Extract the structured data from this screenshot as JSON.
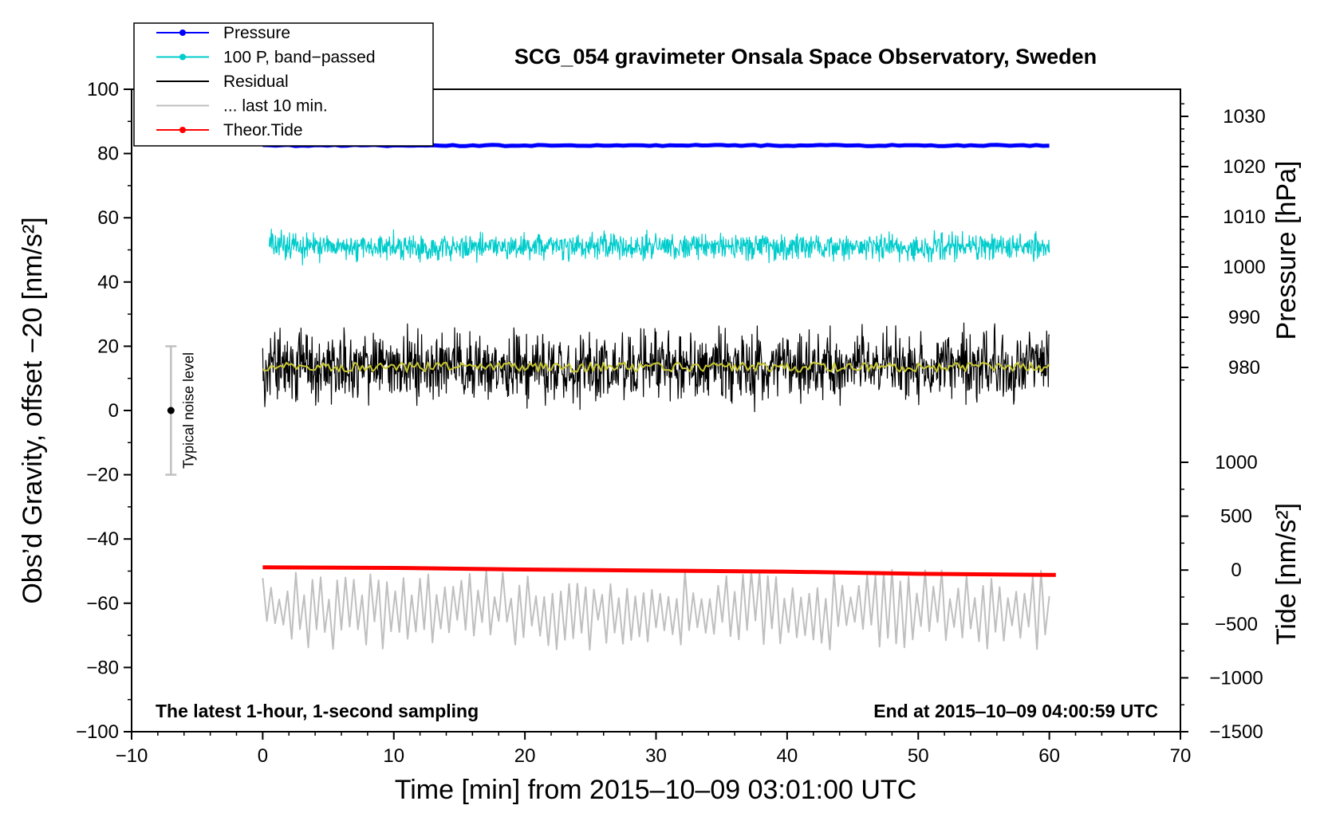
{
  "chart_data": {
    "type": "line",
    "title": "SCG_054 gravimeter Onsala Space Observatory, Sweden",
    "xlabel": "Time [min] from 2015‒10‒09 03:01:00 UTC",
    "ylabel_left": "Obs’d Gravity, offset −20 [nm/s²]",
    "ylabel_right_top": "Pressure [hPa]",
    "ylabel_right_bottom": "Tide [nm/s²]",
    "xlim": [
      -10,
      70
    ],
    "ylim_left": [
      -100,
      100
    ],
    "ylim_pressure": [
      970,
      1035
    ],
    "ylim_tide": [
      -1500,
      1000
    ],
    "x_ticks": [
      "−10",
      "0",
      "10",
      "20",
      "30",
      "40",
      "50",
      "60",
      "70"
    ],
    "y_ticks_left": [
      "100",
      "80",
      "60",
      "40",
      "20",
      "0",
      "−20",
      "−40",
      "−60",
      "−80",
      "−100"
    ],
    "pressure_ticks": [
      "1030",
      "1020",
      "1010",
      "1000",
      "990",
      "980"
    ],
    "tide_ticks": [
      "1000",
      "500",
      "0",
      "−500",
      "−1000",
      "−1500"
    ],
    "legend": [
      {
        "label": "Pressure",
        "color": "#0000ff",
        "marker": true
      },
      {
        "label": "100 P, band−passed",
        "color": "#00cccc",
        "marker": true
      },
      {
        "label": "Residual",
        "color": "#000000",
        "marker": false
      },
      {
        "label": "... last 10 min.",
        "color": "#bfbfbf",
        "marker": false
      },
      {
        "label": "Theor.Tide",
        "color": "#ff0000",
        "marker": true
      }
    ],
    "noise_level": {
      "label": "Typical noise level",
      "x": -7,
      "center": 0,
      "low": -20,
      "high": 20
    },
    "series": [
      {
        "name": "Pressure",
        "axis": "left",
        "color": "#0000ff",
        "x_start": 0,
        "x_end": 60,
        "mean": 82.5,
        "amplitude": 0.4,
        "style": "thick"
      },
      {
        "name": "100 P, band−passed",
        "axis": "left",
        "color": "#00cccc",
        "x_start": 0.5,
        "x_end": 60,
        "mean": 51,
        "amplitude": 11,
        "style": "noise"
      },
      {
        "name": "Residual",
        "axis": "left",
        "color": "#000000",
        "x_start": 0,
        "x_end": 60,
        "mean": 13.5,
        "amplitude": 28,
        "style": "noise"
      },
      {
        "name": "Residual smoothed",
        "axis": "left",
        "color": "#c8c832",
        "x_start": 0,
        "x_end": 60,
        "mean": 13.5,
        "amplitude": 3,
        "style": "smooth"
      },
      {
        "name": "... last 10 min.",
        "axis": "left",
        "color": "#bfbfbf",
        "x_start": 0,
        "x_end": 60,
        "mean": -62,
        "amplitude": 25,
        "style": "oscillation"
      },
      {
        "name": "Theor.Tide",
        "axis": "tide",
        "color": "#ff0000",
        "points": [
          [
            0,
            25
          ],
          [
            10,
            20
          ],
          [
            20,
            5
          ],
          [
            30,
            -5
          ],
          [
            40,
            -15
          ],
          [
            50,
            -35
          ],
          [
            60,
            -45
          ],
          [
            60.5,
            -45
          ]
        ],
        "style": "thick"
      }
    ],
    "annotation_left": "The latest 1‑hour, 1‑second sampling",
    "annotation_right": "End at 2015‒10‒09 04:00:59 UTC"
  }
}
